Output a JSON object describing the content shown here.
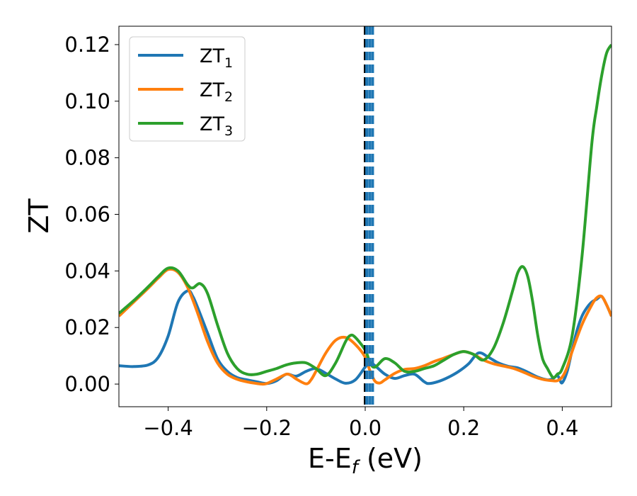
{
  "chart_data": {
    "type": "line",
    "xlabel": "E-E",
    "xlabel_sub": "f",
    "xlabel_unit": " (eV)",
    "ylabel": "ZT",
    "xlim": [
      -0.5,
      0.5
    ],
    "ylim": [
      -0.008,
      0.1265
    ],
    "x_ticks": [
      -0.4,
      -0.2,
      0.0,
      0.2,
      0.4
    ],
    "x_tick_labels": [
      "−0.4",
      "−0.2",
      "0.0",
      "0.2",
      "0.4"
    ],
    "y_ticks": [
      0.0,
      0.02,
      0.04,
      0.06,
      0.08,
      0.1,
      0.12
    ],
    "y_tick_labels": [
      "0.00",
      "0.02",
      "0.04",
      "0.06",
      "0.08",
      "0.10",
      "0.12"
    ],
    "legend_position": "upper-left",
    "vlines": [
      {
        "x": 0.0,
        "color": "#000000",
        "style": "dashed"
      },
      {
        "x": 0.003,
        "color": "#1f77b4",
        "style": "dashed"
      },
      {
        "x": 0.009,
        "color": "#1f77b4",
        "style": "dashed"
      },
      {
        "x": 0.015,
        "color": "#1f77b4",
        "style": "dashed"
      }
    ],
    "series": [
      {
        "name": "ZT",
        "name_sub": "1",
        "color": "#1f77b4",
        "x": [
          -0.5,
          -0.47,
          -0.44,
          -0.42,
          -0.4,
          -0.38,
          -0.36,
          -0.35,
          -0.34,
          -0.32,
          -0.3,
          -0.28,
          -0.26,
          -0.24,
          -0.22,
          -0.2,
          -0.18,
          -0.16,
          -0.14,
          -0.12,
          -0.1,
          -0.08,
          -0.06,
          -0.04,
          -0.02,
          0.0,
          0.01,
          0.02,
          0.04,
          0.06,
          0.08,
          0.1,
          0.12,
          0.13,
          0.15,
          0.17,
          0.19,
          0.21,
          0.23,
          0.25,
          0.27,
          0.29,
          0.31,
          0.33,
          0.35,
          0.37,
          0.38,
          0.39,
          0.395,
          0.4,
          0.41,
          0.42,
          0.43,
          0.44,
          0.45,
          0.46,
          0.47,
          0.48,
          0.49,
          0.5
        ],
        "y": [
          0.0065,
          0.0062,
          0.0068,
          0.0095,
          0.017,
          0.029,
          0.033,
          0.031,
          0.027,
          0.018,
          0.009,
          0.0045,
          0.0023,
          0.0015,
          0.0008,
          0.0002,
          0.0012,
          0.0035,
          0.0028,
          0.0045,
          0.0055,
          0.0038,
          0.0018,
          0.0003,
          0.0015,
          0.006,
          0.0075,
          0.0065,
          0.0035,
          0.002,
          0.003,
          0.0035,
          0.0008,
          0.0002,
          0.001,
          0.0025,
          0.0045,
          0.0072,
          0.011,
          0.0095,
          0.0075,
          0.0063,
          0.0057,
          0.0042,
          0.0025,
          0.0015,
          0.0018,
          0.003,
          0.0015,
          0.0005,
          0.0045,
          0.012,
          0.019,
          0.024,
          0.027,
          0.029,
          0.03,
          0.031,
          0.028,
          0.024
        ]
      },
      {
        "name": "ZT",
        "name_sub": "2",
        "color": "#ff7f0e",
        "x": [
          -0.5,
          -0.47,
          -0.44,
          -0.42,
          -0.4,
          -0.38,
          -0.36,
          -0.34,
          -0.32,
          -0.3,
          -0.28,
          -0.26,
          -0.24,
          -0.22,
          -0.21,
          -0.2,
          -0.18,
          -0.16,
          -0.15,
          -0.14,
          -0.12,
          -0.11,
          -0.1,
          -0.08,
          -0.06,
          -0.04,
          -0.02,
          0.0,
          0.01,
          0.02,
          0.03,
          0.04,
          0.06,
          0.08,
          0.1,
          0.12,
          0.14,
          0.16,
          0.18,
          0.2,
          0.22,
          0.24,
          0.26,
          0.28,
          0.3,
          0.32,
          0.34,
          0.36,
          0.38,
          0.39,
          0.4,
          0.41,
          0.42,
          0.44,
          0.46,
          0.47,
          0.48,
          0.49,
          0.5
        ],
        "y": [
          0.024,
          0.029,
          0.034,
          0.0375,
          0.0405,
          0.0395,
          0.034,
          0.025,
          0.015,
          0.0075,
          0.0035,
          0.0017,
          0.0008,
          0.0002,
          0.0,
          0.0002,
          0.0018,
          0.0035,
          0.003,
          0.0018,
          0.0001,
          0.0015,
          0.0045,
          0.011,
          0.0155,
          0.0165,
          0.014,
          0.0095,
          0.0045,
          0.001,
          0.0004,
          0.0015,
          0.0038,
          0.0052,
          0.0055,
          0.0065,
          0.008,
          0.0092,
          0.0105,
          0.0115,
          0.0105,
          0.0085,
          0.0072,
          0.0064,
          0.0056,
          0.0043,
          0.0028,
          0.0017,
          0.0012,
          0.0012,
          0.0025,
          0.006,
          0.0115,
          0.021,
          0.028,
          0.0305,
          0.031,
          0.028,
          0.024
        ]
      },
      {
        "name": "ZT",
        "name_sub": "3",
        "color": "#2ca02c",
        "x": [
          -0.5,
          -0.47,
          -0.44,
          -0.42,
          -0.4,
          -0.38,
          -0.36,
          -0.35,
          -0.335,
          -0.32,
          -0.3,
          -0.28,
          -0.26,
          -0.24,
          -0.22,
          -0.2,
          -0.18,
          -0.16,
          -0.14,
          -0.12,
          -0.1,
          -0.08,
          -0.06,
          -0.04,
          -0.03,
          -0.02,
          0.0,
          0.01,
          0.02,
          0.04,
          0.06,
          0.08,
          0.1,
          0.12,
          0.14,
          0.16,
          0.18,
          0.2,
          0.22,
          0.24,
          0.26,
          0.28,
          0.3,
          0.31,
          0.32,
          0.33,
          0.34,
          0.35,
          0.36,
          0.37,
          0.38,
          0.385,
          0.39,
          0.4,
          0.42,
          0.44,
          0.46,
          0.47,
          0.48,
          0.49,
          0.5
        ],
        "y": [
          0.025,
          0.0295,
          0.0345,
          0.038,
          0.041,
          0.04,
          0.035,
          0.034,
          0.0355,
          0.032,
          0.021,
          0.011,
          0.0055,
          0.0035,
          0.0035,
          0.0045,
          0.0055,
          0.0068,
          0.0075,
          0.0075,
          0.0055,
          0.003,
          0.0075,
          0.015,
          0.0172,
          0.0165,
          0.012,
          0.0075,
          0.006,
          0.009,
          0.0075,
          0.0045,
          0.0045,
          0.0055,
          0.0065,
          0.0085,
          0.0105,
          0.0115,
          0.0105,
          0.0085,
          0.0125,
          0.0215,
          0.0335,
          0.0395,
          0.0415,
          0.038,
          0.029,
          0.0175,
          0.009,
          0.0055,
          0.0025,
          0.0025,
          0.0035,
          0.0055,
          0.017,
          0.045,
          0.085,
          0.098,
          0.109,
          0.117,
          0.12
        ]
      }
    ]
  }
}
